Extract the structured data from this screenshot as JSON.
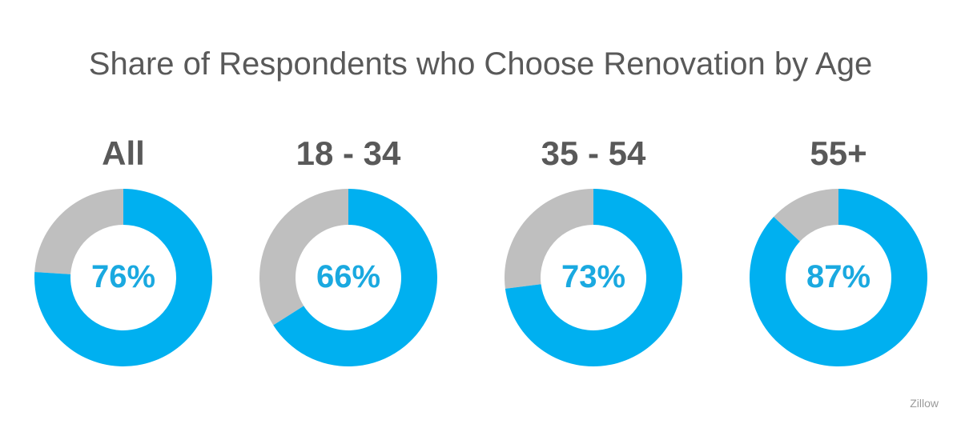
{
  "chart_data": {
    "type": "pie",
    "title": "Share of Respondents who Choose Renovation by Age",
    "categories": [
      "All",
      "18 - 34",
      "35 - 54",
      "55+"
    ],
    "series": [
      {
        "values": [
          76,
          66,
          73,
          87
        ]
      }
    ],
    "value_labels": [
      "76%",
      "66%",
      "73%",
      "87%"
    ],
    "style": "donut",
    "colors": {
      "value": "#00b0f0",
      "remainder": "#bfbfbf",
      "value_text": "#1aa9e0",
      "label_text": "#595959"
    }
  },
  "source": "Zillow"
}
